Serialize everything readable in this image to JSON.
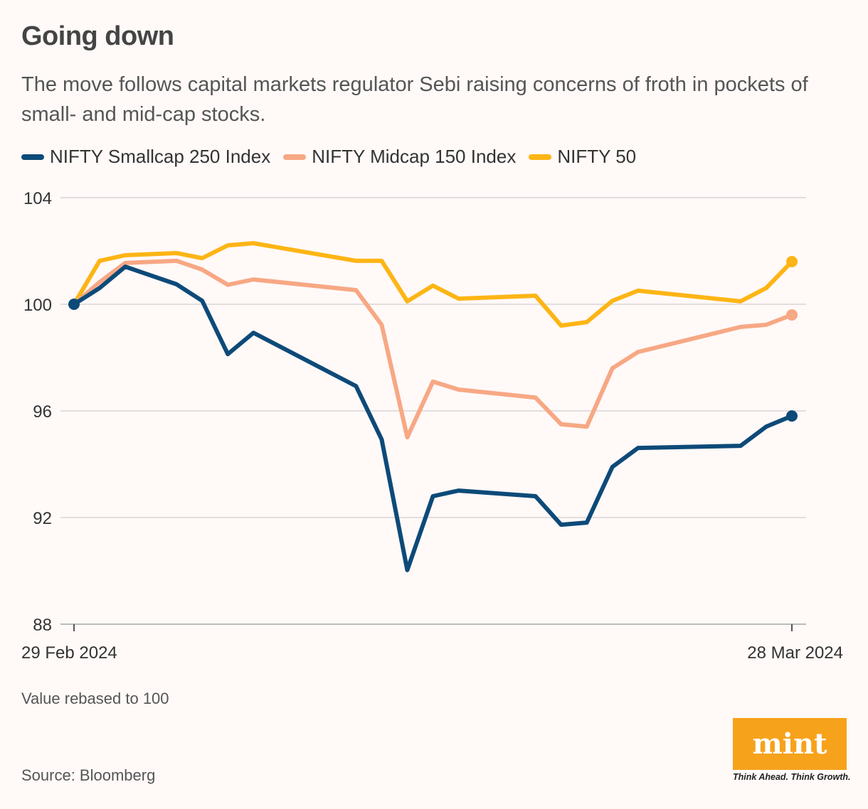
{
  "header": {
    "title": "Going down",
    "subtitle": "The move follows capital markets regulator Sebi raising concerns of froth in pockets of small- and mid-cap stocks."
  },
  "footer": {
    "note": "Value rebased to 100",
    "source": "Source: Bloomberg",
    "logo_text": "mint",
    "tagline": "Think Ahead. Think Growth."
  },
  "chart_data": {
    "type": "line",
    "title": "Going down",
    "xlabel": "",
    "ylabel": "",
    "ylim": [
      88,
      104
    ],
    "yticks": [
      88,
      92,
      96,
      100,
      104
    ],
    "xlim_days": [
      0,
      28
    ],
    "xtick_labels": [
      {
        "day": 0,
        "label": "29 Feb 2024"
      },
      {
        "day": 28,
        "label": "28 Mar 2024"
      }
    ],
    "grid": true,
    "legend_position": "top-left",
    "x_days_since_29_feb": [
      0,
      1,
      2,
      4,
      5,
      6,
      7,
      11,
      12,
      13,
      14,
      15,
      18,
      19,
      20,
      21,
      22,
      26,
      27,
      28
    ],
    "series": [
      {
        "name": "NIFTY Smallcap 250 Index",
        "color": "#0d4a78",
        "values": [
          100,
          100.61,
          101.41,
          100.75,
          100.13,
          98.13,
          98.93,
          96.93,
          94.93,
          90.03,
          92.8,
          93.01,
          92.8,
          91.73,
          91.81,
          93.9,
          94.61,
          94.69,
          95.41,
          95.81
        ]
      },
      {
        "name": "NIFTY Midcap 150 Index",
        "color": "#f7a884",
        "values": [
          100,
          100.83,
          101.55,
          101.63,
          101.3,
          100.73,
          100.93,
          100.53,
          99.23,
          95.01,
          97.1,
          96.8,
          96.5,
          95.5,
          95.41,
          97.6,
          98.21,
          99.15,
          99.23,
          99.6
        ]
      },
      {
        "name": "NIFTY 50",
        "color": "#fdb515",
        "values": [
          100,
          101.63,
          101.84,
          101.92,
          101.73,
          102.21,
          102.29,
          101.63,
          101.63,
          100.11,
          100.7,
          100.21,
          100.32,
          99.2,
          99.33,
          100.13,
          100.51,
          100.11,
          100.61,
          101.6
        ]
      }
    ]
  }
}
